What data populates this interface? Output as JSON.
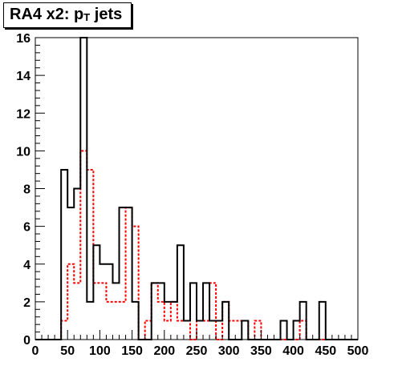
{
  "title": {
    "main": "RA4 x2: p",
    "subscript": "T",
    "suffix": " jets"
  },
  "chart_data": {
    "type": "histogram",
    "title": "RA4 x2: p_T jets",
    "xlabel": "",
    "ylabel": "",
    "xlim": [
      0,
      500
    ],
    "ylim": [
      0,
      16
    ],
    "bin_width": 10,
    "x_ticks": [
      "0",
      "50",
      "100",
      "150",
      "200",
      "250",
      "300",
      "350",
      "400",
      "450",
      "500"
    ],
    "y_ticks": [
      "0",
      "2",
      "4",
      "6",
      "8",
      "10",
      "12",
      "14",
      "16"
    ],
    "grid": false,
    "legend": "none",
    "series": [
      {
        "style": "solid",
        "color": "#000000",
        "values": [
          0,
          0,
          0,
          0,
          9,
          7,
          8,
          16,
          2,
          5,
          4,
          4,
          3,
          7,
          7,
          2,
          0,
          0,
          3,
          3,
          2,
          2,
          5,
          1,
          3,
          1,
          3,
          1,
          1,
          2,
          0,
          0,
          1,
          0,
          0,
          0,
          0,
          0,
          1,
          0,
          1,
          2,
          0,
          0,
          2,
          0,
          0,
          0,
          0,
          0
        ]
      },
      {
        "style": "dashed",
        "color": "#ff0000",
        "values": [
          0,
          0,
          0,
          0,
          1,
          4,
          3,
          10,
          9,
          3,
          3,
          2,
          2,
          2,
          7,
          6,
          0,
          1,
          3,
          2,
          1,
          2,
          1,
          1,
          0,
          1,
          1,
          3,
          0,
          2,
          1,
          1,
          1,
          0,
          1,
          0,
          0,
          0,
          0,
          0,
          0,
          1,
          0,
          0,
          0,
          0,
          0,
          0,
          0,
          0
        ]
      }
    ]
  }
}
